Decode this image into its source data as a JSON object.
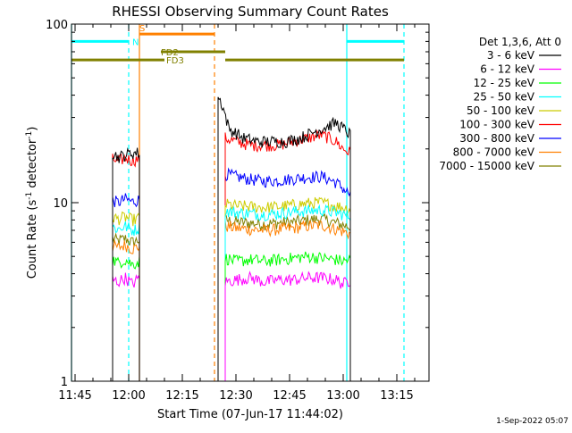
{
  "chart_data": {
    "type": "line",
    "title": "RHESSI Observing Summary Count Rates",
    "xlabel": "Start Time (07-Jun-17 11:44:02)",
    "ylabel": "Count Rate (s",
    "ylabel_sup": "-1",
    "ylabel_rest": " detector",
    "ylabel_close": ")",
    "x_unit": "minutes since 11:44:02",
    "xlim": [
      0,
      100
    ],
    "ylim": [
      1,
      100
    ],
    "y_scale": "log",
    "grid": false,
    "x_ticks": [
      {
        "value": 1,
        "label": "11:45"
      },
      {
        "value": 16,
        "label": "12:00"
      },
      {
        "value": 31,
        "label": "12:15"
      },
      {
        "value": 46,
        "label": "12:30"
      },
      {
        "value": 61,
        "label": "12:45"
      },
      {
        "value": 76,
        "label": "13:00"
      },
      {
        "value": 91,
        "label": "13:15"
      }
    ],
    "y_ticks": [
      {
        "value": 1,
        "label": "1"
      },
      {
        "value": 10,
        "label": "10"
      },
      {
        "value": 100,
        "label": "100"
      }
    ],
    "legend_title": "Det 1,3,6, Att 0",
    "legend_position": "right",
    "series": [
      {
        "name": "3 - 6 keV",
        "color": "#000000",
        "segments": [
          {
            "x": [
              11.5,
              13,
              15,
              17,
              19
            ],
            "y": [
              19,
              18,
              18.5,
              19,
              19
            ]
          },
          {
            "x": [
              41,
              42,
              44,
              48,
              52,
              56,
              60,
              64,
              68,
              72,
              74,
              76,
              78
            ],
            "y": [
              39,
              36,
              26,
              23,
              22,
              22,
              22,
              23,
              25,
              27,
              28,
              26,
              24
            ]
          }
        ]
      },
      {
        "name": "6 - 12 keV",
        "color": "#ff00ff",
        "segments": [
          {
            "x": [
              11.5,
              13,
              15,
              17,
              19
            ],
            "y": [
              3.7,
              3.6,
              3.8,
              3.5,
              3.8
            ]
          },
          {
            "x": [
              43,
              46,
              50,
              54,
              58,
              62,
              66,
              70,
              74,
              76,
              78
            ],
            "y": [
              3.6,
              3.7,
              3.8,
              3.6,
              3.7,
              3.7,
              3.8,
              3.8,
              3.7,
              3.5,
              3.7
            ]
          }
        ]
      },
      {
        "name": "12 - 25 keV",
        "color": "#00ff00",
        "segments": [
          {
            "x": [
              11.5,
              13,
              15,
              17,
              19
            ],
            "y": [
              4.8,
              4.6,
              4.8,
              4.5,
              4.7
            ]
          },
          {
            "x": [
              43,
              46,
              50,
              54,
              58,
              62,
              66,
              70,
              74,
              76,
              78
            ],
            "y": [
              4.9,
              4.7,
              4.8,
              4.7,
              4.8,
              4.9,
              5.0,
              4.9,
              4.8,
              4.7,
              4.8
            ]
          }
        ]
      },
      {
        "name": "25 - 50 keV",
        "color": "#00ffff",
        "segments": [
          {
            "x": [
              11.5,
              13,
              15,
              17,
              19
            ],
            "y": [
              7.3,
              7.1,
              7.4,
              7.0,
              7.2
            ]
          },
          {
            "x": [
              43,
              46,
              50,
              54,
              58,
              62,
              66,
              70,
              74,
              76,
              78
            ],
            "y": [
              9.0,
              8.8,
              8.7,
              8.6,
              8.7,
              8.9,
              9.0,
              9.1,
              8.8,
              8.6,
              8.4
            ]
          }
        ]
      },
      {
        "name": "50 - 100 keV",
        "color": "#cccc00",
        "segments": [
          {
            "x": [
              11.5,
              13,
              15,
              17,
              19
            ],
            "y": [
              8.3,
              8.1,
              8.3,
              8.0,
              8.2
            ]
          },
          {
            "x": [
              43,
              46,
              50,
              54,
              58,
              62,
              66,
              70,
              74,
              76,
              78
            ],
            "y": [
              9.8,
              9.6,
              9.5,
              9.4,
              9.5,
              9.7,
              9.9,
              10.0,
              9.6,
              9.4,
              9.2
            ]
          }
        ]
      },
      {
        "name": "100 - 300 keV",
        "color": "#ff0000",
        "segments": [
          {
            "x": [
              11.5,
              13,
              15,
              17,
              19
            ],
            "y": [
              17.5,
              17,
              17.8,
              17.2,
              17.6
            ]
          },
          {
            "x": [
              43,
              46,
              50,
              54,
              58,
              62,
              66,
              70,
              74,
              76,
              78
            ],
            "y": [
              23,
              22,
              21,
              21,
              21,
              22,
              23,
              24,
              22,
              20,
              19
            ]
          }
        ]
      },
      {
        "name": "300 - 800 keV",
        "color": "#0000ff",
        "segments": [
          {
            "x": [
              11.5,
              13,
              15,
              17,
              19
            ],
            "y": [
              10.3,
              10.0,
              10.5,
              10.1,
              10.4
            ]
          },
          {
            "x": [
              43,
              46,
              50,
              54,
              58,
              62,
              66,
              70,
              74,
              76,
              78
            ],
            "y": [
              14.5,
              14,
              13.5,
              13.2,
              13.3,
              13.6,
              13.9,
              14,
              13,
              12,
              11
            ]
          }
        ]
      },
      {
        "name": "800 - 7000 keV",
        "color": "#ff8000",
        "segments": [
          {
            "x": [
              11.5,
              13,
              15,
              17,
              19
            ],
            "y": [
              5.7,
              5.6,
              5.8,
              5.5,
              5.7
            ]
          },
          {
            "x": [
              43,
              46,
              50,
              54,
              58,
              62,
              66,
              70,
              74,
              76,
              78
            ],
            "y": [
              7.4,
              7.2,
              7.1,
              7.0,
              7.1,
              7.2,
              7.4,
              7.5,
              7.1,
              6.9,
              6.7
            ]
          }
        ]
      },
      {
        "name": "7000 - 15000 keV",
        "color": "#808000",
        "segments": [
          {
            "x": [
              11.5,
              13,
              15,
              17,
              19
            ],
            "y": [
              6.3,
              6.1,
              6.3,
              6.0,
              6.2
            ]
          },
          {
            "x": [
              43,
              46,
              50,
              54,
              58,
              62,
              66,
              70,
              74,
              76,
              78
            ],
            "y": [
              8.0,
              7.8,
              7.7,
              7.6,
              7.7,
              7.8,
              8.0,
              8.1,
              7.7,
              7.5,
              7.3
            ]
          }
        ]
      }
    ],
    "flag_bars": [
      {
        "label": "",
        "color": "#00ffff",
        "y": 80,
        "segments": [
          [
            0,
            16
          ],
          [
            77,
            93
          ]
        ]
      },
      {
        "label": "N",
        "color": "#00ffff",
        "y": 80,
        "segments": []
      },
      {
        "label": "S",
        "color": "#ff8000",
        "y": 88,
        "segments": [
          [
            19,
            40
          ]
        ]
      },
      {
        "label": "FD2",
        "color": "#808000",
        "y": 70,
        "segments": [
          [
            25,
            43
          ]
        ]
      },
      {
        "label": "FD3",
        "color": "#808000",
        "y": 63,
        "segments": [
          [
            0,
            26
          ],
          [
            43,
            93
          ]
        ]
      }
    ],
    "vlines": [
      {
        "x": 0,
        "color": "#00ffff",
        "style": "solid"
      },
      {
        "x": 16,
        "color": "#00ffff",
        "style": "dashed"
      },
      {
        "x": 19,
        "color": "#ff8000",
        "style": "solid"
      },
      {
        "x": 40,
        "color": "#ff8000",
        "style": "dashed"
      },
      {
        "x": 77,
        "color": "#00ffff",
        "style": "solid"
      },
      {
        "x": 93,
        "color": "#00ffff",
        "style": "dashed"
      }
    ],
    "timestamp": "1-Sep-2022 05:07"
  }
}
